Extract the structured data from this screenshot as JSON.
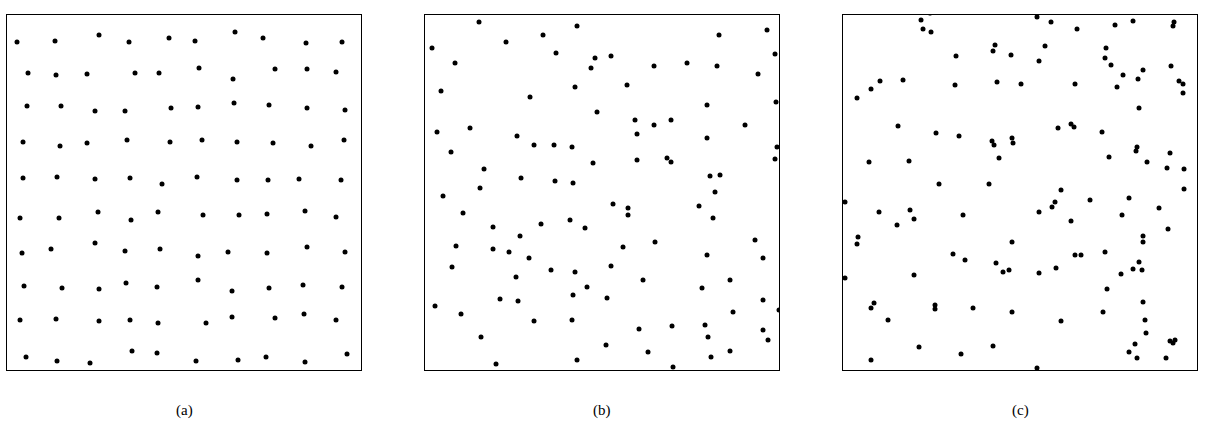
{
  "chart_data": [
    {
      "type": "scatter",
      "title": "(a)",
      "color": "#000000",
      "marker": "circle",
      "tick_labels": false,
      "xlim": [
        0,
        354
      ],
      "ylim": [
        0,
        355
      ],
      "points": [
        [
          10,
          328
        ],
        [
          48,
          329
        ],
        [
          92,
          335
        ],
        [
          122,
          328
        ],
        [
          162,
          332
        ],
        [
          188,
          329
        ],
        [
          228,
          338
        ],
        [
          256,
          332
        ],
        [
          299,
          327
        ],
        [
          335,
          328
        ],
        [
          21,
          297
        ],
        [
          49,
          295
        ],
        [
          80,
          296
        ],
        [
          128,
          297
        ],
        [
          152,
          297
        ],
        [
          192,
          302
        ],
        [
          226,
          291
        ],
        [
          268,
          301
        ],
        [
          300,
          301
        ],
        [
          329,
          298
        ],
        [
          20,
          264
        ],
        [
          54,
          264
        ],
        [
          88,
          259
        ],
        [
          118,
          259
        ],
        [
          164,
          262
        ],
        [
          191,
          263
        ],
        [
          227,
          267
        ],
        [
          262,
          265
        ],
        [
          300,
          262
        ],
        [
          338,
          260
        ],
        [
          16,
          228
        ],
        [
          53,
          224
        ],
        [
          80,
          227
        ],
        [
          120,
          230
        ],
        [
          163,
          228
        ],
        [
          195,
          230
        ],
        [
          230,
          228
        ],
        [
          266,
          227
        ],
        [
          304,
          224
        ],
        [
          337,
          230
        ],
        [
          16,
          192
        ],
        [
          50,
          193
        ],
        [
          88,
          191
        ],
        [
          123,
          192
        ],
        [
          155,
          186
        ],
        [
          190,
          193
        ],
        [
          230,
          190
        ],
        [
          261,
          190
        ],
        [
          292,
          191
        ],
        [
          334,
          190
        ],
        [
          13,
          152
        ],
        [
          52,
          152
        ],
        [
          91,
          158
        ],
        [
          124,
          150
        ],
        [
          151,
          158
        ],
        [
          196,
          155
        ],
        [
          232,
          155
        ],
        [
          260,
          156
        ],
        [
          298,
          159
        ],
        [
          329,
          153
        ],
        [
          15,
          117
        ],
        [
          44,
          121
        ],
        [
          88,
          127
        ],
        [
          118,
          119
        ],
        [
          153,
          121
        ],
        [
          191,
          114
        ],
        [
          221,
          118
        ],
        [
          260,
          117
        ],
        [
          300,
          123
        ],
        [
          338,
          118
        ],
        [
          17,
          84
        ],
        [
          55,
          82
        ],
        [
          92,
          81
        ],
        [
          119,
          87
        ],
        [
          150,
          83
        ],
        [
          191,
          90
        ],
        [
          225,
          79
        ],
        [
          262,
          82
        ],
        [
          296,
          85
        ],
        [
          335,
          83
        ],
        [
          13,
          50
        ],
        [
          49,
          51
        ],
        [
          92,
          49
        ],
        [
          123,
          50
        ],
        [
          151,
          47
        ],
        [
          199,
          47
        ],
        [
          225,
          53
        ],
        [
          268,
          52
        ],
        [
          297,
          56
        ],
        [
          329,
          50
        ],
        [
          19,
          13
        ],
        [
          50,
          9
        ],
        [
          83,
          7
        ],
        [
          125,
          19
        ],
        [
          150,
          17
        ],
        [
          189,
          9
        ],
        [
          231,
          10
        ],
        [
          259,
          13
        ],
        [
          298,
          8
        ],
        [
          340,
          16
        ]
      ]
    },
    {
      "type": "scatter",
      "title": "(b)",
      "color": "#000000",
      "marker": "circle",
      "tick_labels": false,
      "xlim": [
        0,
        354
      ],
      "ylim": [
        0,
        355
      ],
      "points": [
        [
          54,
          348
        ],
        [
          152,
          344
        ],
        [
          7,
          322
        ],
        [
          81,
          328
        ],
        [
          118,
          335
        ],
        [
          131,
          317
        ],
        [
          166,
          302
        ],
        [
          186,
          314
        ],
        [
          170,
          312
        ],
        [
          30,
          307
        ],
        [
          229,
          304
        ],
        [
          262,
          307
        ],
        [
          292,
          304
        ],
        [
          294,
          335
        ],
        [
          342,
          340
        ],
        [
          350,
          316
        ],
        [
          333,
          296
        ],
        [
          202,
          285
        ],
        [
          105,
          273
        ],
        [
          16,
          279
        ],
        [
          150,
          283
        ],
        [
          172,
          258
        ],
        [
          282,
          265
        ],
        [
          229,
          245
        ],
        [
          246,
          250
        ],
        [
          212,
          236
        ],
        [
          210,
          250
        ],
        [
          320,
          245
        ],
        [
          351,
          268
        ],
        [
          282,
          232
        ],
        [
          12,
          238
        ],
        [
          45,
          242
        ],
        [
          26,
          218
        ],
        [
          92,
          234
        ],
        [
          109,
          225
        ],
        [
          129,
          225
        ],
        [
          147,
          223
        ],
        [
          168,
          207
        ],
        [
          212,
          210
        ],
        [
          242,
          212
        ],
        [
          285,
          194
        ],
        [
          295,
          195
        ],
        [
          352,
          223
        ],
        [
          59,
          201
        ],
        [
          55,
          182
        ],
        [
          96,
          192
        ],
        [
          130,
          189
        ],
        [
          148,
          187
        ],
        [
          18,
          174
        ],
        [
          38,
          157
        ],
        [
          68,
          143
        ],
        [
          188,
          166
        ],
        [
          203,
          162
        ],
        [
          274,
          164
        ],
        [
          290,
          178
        ],
        [
          246,
          208
        ],
        [
          350,
          211
        ],
        [
          116,
          146
        ],
        [
          145,
          150
        ],
        [
          160,
          142
        ],
        [
          203,
          155
        ],
        [
          288,
          152
        ],
        [
          330,
          130
        ],
        [
          31,
          124
        ],
        [
          27,
          103
        ],
        [
          68,
          121
        ],
        [
          95,
          134
        ],
        [
          84,
          118
        ],
        [
          104,
          112
        ],
        [
          126,
          100
        ],
        [
          150,
          98
        ],
        [
          198,
          123
        ],
        [
          230,
          128
        ],
        [
          282,
          115
        ],
        [
          305,
          90
        ],
        [
          338,
          112
        ],
        [
          91,
          93
        ],
        [
          162,
          83
        ],
        [
          148,
          75
        ],
        [
          186,
          104
        ],
        [
          218,
          90
        ],
        [
          277,
          82
        ],
        [
          93,
          69
        ],
        [
          75,
          71
        ],
        [
          10,
          64
        ],
        [
          36,
          56
        ],
        [
          109,
          49
        ],
        [
          147,
          50
        ],
        [
          182,
          72
        ],
        [
          214,
          41
        ],
        [
          247,
          44
        ],
        [
          280,
          45
        ],
        [
          308,
          58
        ],
        [
          338,
          70
        ],
        [
          338,
          40
        ],
        [
          354,
          60
        ],
        [
          56,
          33
        ],
        [
          71,
          6
        ],
        [
          152,
          10
        ],
        [
          181,
          25
        ],
        [
          223,
          18
        ],
        [
          248,
          3
        ],
        [
          283,
          33
        ],
        [
          286,
          13
        ],
        [
          305,
          19
        ],
        [
          343,
          30
        ]
      ]
    },
    {
      "type": "scatter",
      "title": "(c)",
      "color": "#000000",
      "marker": "circle",
      "tick_labels": false,
      "xlim": [
        0,
        354
      ],
      "ylim": [
        0,
        355
      ],
      "points": [
        [
          78,
          350
        ],
        [
          87,
          357
        ],
        [
          80,
          341
        ],
        [
          88,
          338
        ],
        [
          208,
          348
        ],
        [
          234,
          341
        ],
        [
          272,
          345
        ],
        [
          290,
          349
        ],
        [
          194,
          353
        ],
        [
          331,
          348
        ],
        [
          330,
          344
        ],
        [
          14,
          272
        ],
        [
          28,
          281
        ],
        [
          37,
          289
        ],
        [
          60,
          290
        ],
        [
          112,
          285
        ],
        [
          113,
          314
        ],
        [
          150,
          319
        ],
        [
          154,
          288
        ],
        [
          152,
          325
        ],
        [
          168,
          315
        ],
        [
          178,
          286
        ],
        [
          196,
          309
        ],
        [
          202,
          324
        ],
        [
          232,
          286
        ],
        [
          262,
          312
        ],
        [
          263,
          322
        ],
        [
          268,
          305
        ],
        [
          280,
          295
        ],
        [
          300,
          300
        ],
        [
          295,
          291
        ],
        [
          328,
          304
        ],
        [
          336,
          289
        ],
        [
          340,
          286
        ],
        [
          274,
          283
        ],
        [
          340,
          277
        ],
        [
          296,
          262
        ],
        [
          26,
          208
        ],
        [
          55,
          244
        ],
        [
          66,
          209
        ],
        [
          93,
          237
        ],
        [
          116,
          234
        ],
        [
          149,
          229
        ],
        [
          151,
          225
        ],
        [
          156,
          212
        ],
        [
          169,
          232
        ],
        [
          170,
          227
        ],
        [
          215,
          242
        ],
        [
          228,
          246
        ],
        [
          231,
          243
        ],
        [
          259,
          238
        ],
        [
          266,
          213
        ],
        [
          293,
          219
        ],
        [
          294,
          223
        ],
        [
          304,
          208
        ],
        [
          327,
          217
        ],
        [
          324,
          202
        ],
        [
          341,
          201
        ],
        [
          96,
          186
        ],
        [
          120,
          155
        ],
        [
          146,
          186
        ],
        [
          196,
          158
        ],
        [
          209,
          163
        ],
        [
          212,
          168
        ],
        [
          218,
          180
        ],
        [
          228,
          149
        ],
        [
          247,
          170
        ],
        [
          279,
          155
        ],
        [
          286,
          172
        ],
        [
          316,
          162
        ],
        [
          341,
          181
        ],
        [
          2,
          168
        ],
        [
          15,
          133
        ],
        [
          14,
          126
        ],
        [
          36,
          158
        ],
        [
          54,
          145
        ],
        [
          67,
          160
        ],
        [
          71,
          151
        ],
        [
          110,
          116
        ],
        [
          122,
          110
        ],
        [
          153,
          107
        ],
        [
          166,
          100
        ],
        [
          169,
          128
        ],
        [
          196,
          97
        ],
        [
          213,
          102
        ],
        [
          232,
          115
        ],
        [
          238,
          115
        ],
        [
          262,
          118
        ],
        [
          278,
          96
        ],
        [
          290,
          101
        ],
        [
          296,
          108
        ],
        [
          300,
          134
        ],
        [
          300,
          128
        ],
        [
          299,
          100
        ],
        [
          325,
          141
        ],
        [
          2,
          92
        ],
        [
          28,
          62
        ],
        [
          31,
          67
        ],
        [
          45,
          50
        ],
        [
          71,
          95
        ],
        [
          92,
          65
        ],
        [
          92,
          61
        ],
        [
          130,
          62
        ],
        [
          160,
          98
        ],
        [
          169,
          58
        ],
        [
          218,
          49
        ],
        [
          264,
          81
        ],
        [
          260,
          58
        ],
        [
          302,
          50
        ],
        [
          300,
          68
        ],
        [
          327,
          29
        ],
        [
          303,
          37
        ],
        [
          286,
          18
        ],
        [
          294,
          12
        ],
        [
          292,
          26
        ],
        [
          323,
          12
        ],
        [
          332,
          30
        ],
        [
          330,
          27
        ],
        [
          28,
          10
        ],
        [
          76,
          23
        ],
        [
          118,
          16
        ],
        [
          150,
          24
        ],
        [
          194,
          2
        ]
      ]
    }
  ]
}
